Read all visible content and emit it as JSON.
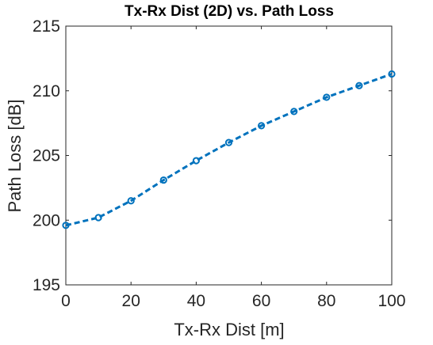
{
  "chart_data": {
    "type": "line",
    "title": "Tx-Rx Dist (2D) vs. Path Loss",
    "xlabel": "Tx-Rx Dist [m]",
    "ylabel": "Path Loss [dB]",
    "xlim": [
      0,
      100
    ],
    "ylim": [
      195,
      215
    ],
    "xticks": [
      "0",
      "20",
      "40",
      "60",
      "80",
      "100"
    ],
    "yticks": [
      "195",
      "200",
      "205",
      "210",
      "215"
    ],
    "grid": false,
    "line_style": "dashed",
    "marker": "circle",
    "series": [
      {
        "color": "#0072BD",
        "x": [
          0,
          10,
          20,
          30,
          40,
          50,
          60,
          70,
          80,
          90,
          100
        ],
        "y": [
          199.6,
          200.2,
          201.5,
          203.1,
          204.6,
          206.0,
          207.3,
          208.4,
          209.5,
          210.4,
          211.3
        ]
      }
    ]
  }
}
